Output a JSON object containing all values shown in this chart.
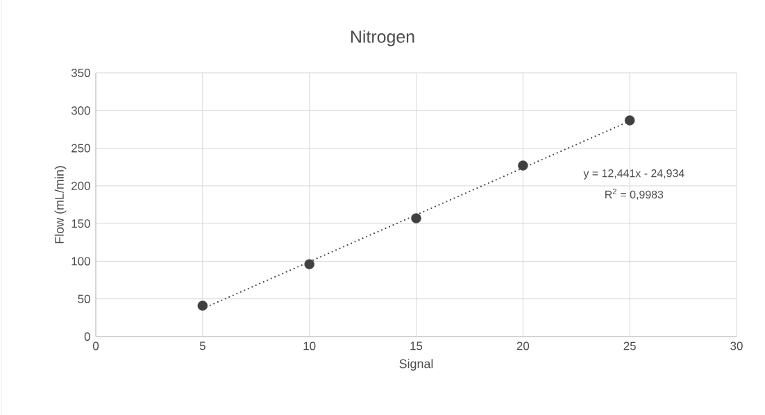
{
  "chart_data": {
    "type": "scatter",
    "title": "Nitrogen",
    "xlabel": "Signal",
    "ylabel": "Flow (mL/min)",
    "series": [
      {
        "color": "#404040",
        "marker": "circle",
        "x": [
          5,
          10,
          15,
          20,
          25
        ],
        "values": [
          41,
          96,
          157,
          227,
          287
        ]
      },
      {
        "type": "line",
        "color": "#404040",
        "marker": "none",
        "line_style": "dotted",
        "x": [
          5,
          25
        ],
        "values": [
          37,
          286
        ]
      }
    ],
    "annotations": [
      "y = 12,441x - 24,934",
      "R$^{2}$ = 0,9983"
    ],
    "xlim": [
      0,
      30
    ],
    "xticks": [
      0,
      5,
      10,
      15,
      20,
      25,
      30
    ],
    "ylim": [
      0,
      350
    ],
    "yticks": [
      0,
      50,
      100,
      150,
      200,
      250,
      300,
      350
    ],
    "grid": true
  }
}
